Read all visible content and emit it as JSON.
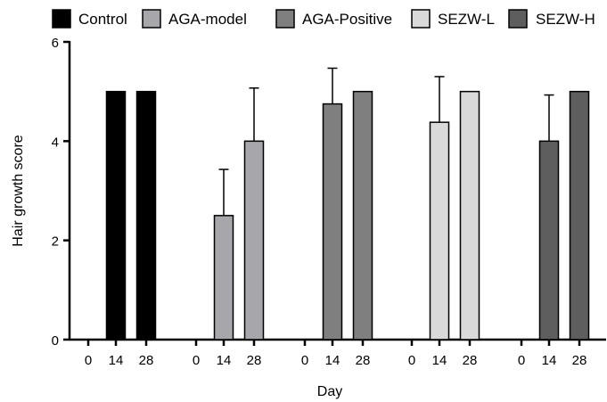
{
  "chart_data": {
    "type": "bar",
    "title": "",
    "xlabel": "Day",
    "ylabel": "Hair growth score",
    "ylim": [
      0,
      6
    ],
    "yticks": [
      0,
      2,
      4,
      6
    ],
    "grid": false,
    "legend_position": "top",
    "day_labels": [
      "0",
      "14",
      "28"
    ],
    "series": [
      {
        "name": "Control",
        "color": "#000000",
        "values": [
          0,
          5,
          5
        ],
        "errors": [
          0,
          0,
          0
        ]
      },
      {
        "name": "AGA-model",
        "color": "#a6a6ab",
        "values": [
          0,
          2.5,
          4
        ],
        "errors": [
          0,
          0.93,
          1.07
        ]
      },
      {
        "name": "AGA-Positive",
        "color": "#7f7f7f",
        "values": [
          0,
          4.75,
          5
        ],
        "errors": [
          0,
          0.72,
          0
        ]
      },
      {
        "name": "SEZW-L",
        "color": "#d9d9d9",
        "values": [
          0,
          4.38,
          5
        ],
        "errors": [
          0,
          0.92,
          0
        ]
      },
      {
        "name": "SEZW-H",
        "color": "#5e5e5e",
        "values": [
          0,
          4,
          5
        ],
        "errors": [
          0,
          0.93,
          0
        ]
      }
    ]
  }
}
